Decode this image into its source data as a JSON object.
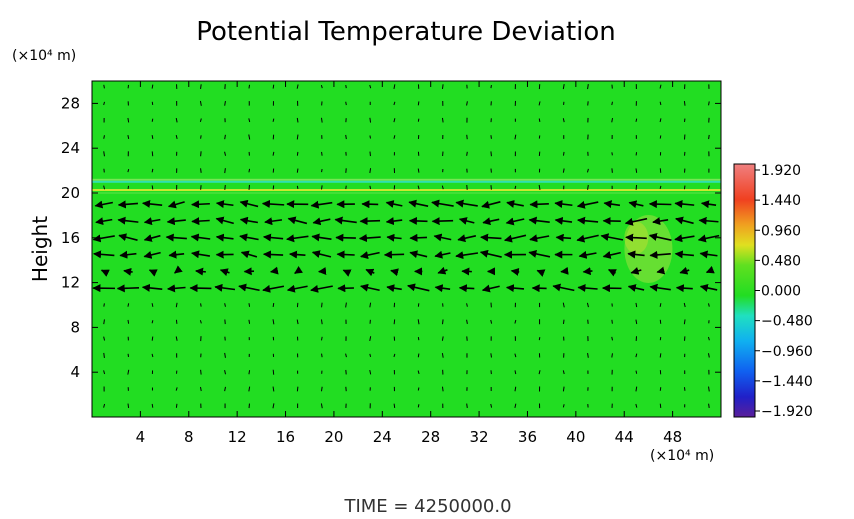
{
  "chart_data": {
    "type": "heatmap",
    "title": "Potential Temperature Deviation",
    "ylabel": "Height",
    "y_unit_label": "(×10⁴ m)",
    "x_unit_label": "(×10⁴ m)",
    "xlim": [
      0,
      52
    ],
    "ylim": [
      0,
      30
    ],
    "x_ticks": [
      "4",
      "8",
      "12",
      "16",
      "20",
      "24",
      "28",
      "32",
      "36",
      "40",
      "44",
      "48"
    ],
    "y_ticks": [
      "4",
      "8",
      "12",
      "16",
      "20",
      "24",
      "28"
    ],
    "colorbar": {
      "range": [
        -1.92,
        1.92
      ],
      "labels": [
        "1.920",
        "1.440",
        "0.960",
        "0.480",
        "0.000",
        "−0.480",
        "−0.960",
        "−1.440",
        "−1.920"
      ]
    },
    "field_background": "near zero (green) over most of the domain",
    "features": [
      {
        "name": "thin band",
        "y_range": [
          20,
          21
        ]
      },
      {
        "name": "warm anomaly",
        "x": 46,
        "y": 15
      }
    ],
    "strong_wind_layers_y": [
      11,
      14,
      16,
      17.5,
      19
    ],
    "footer": "TIME  =  4250000.0",
    "colors": {
      "field": "#22dd22",
      "arrows": "#000000"
    }
  }
}
